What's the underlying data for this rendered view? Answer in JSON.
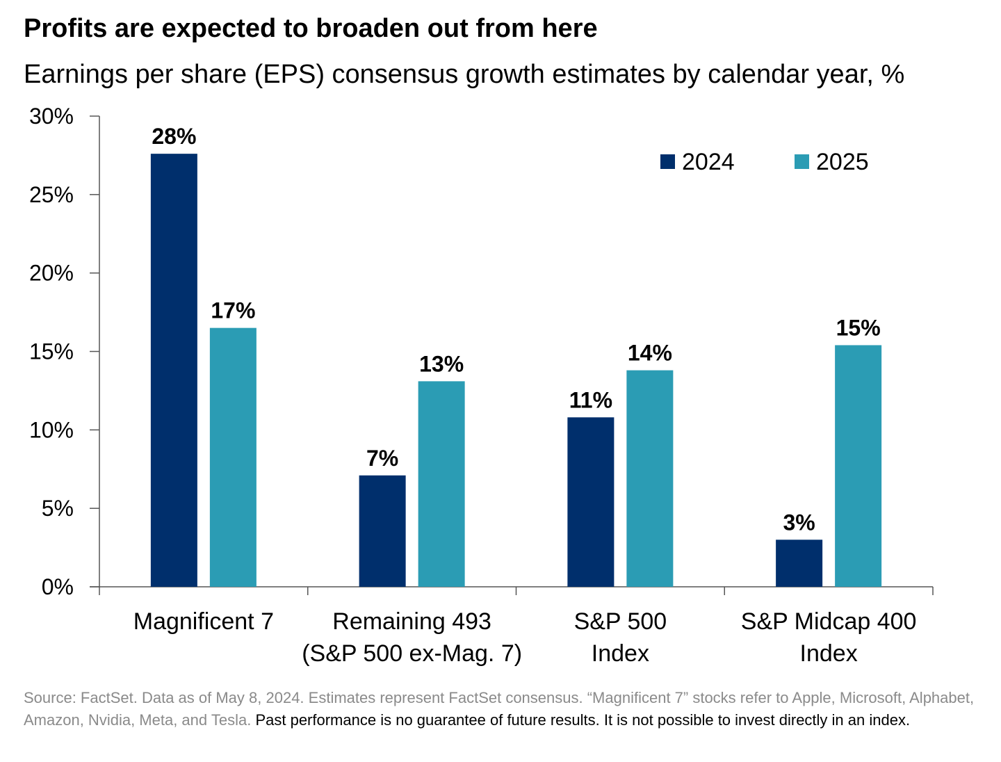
{
  "header": {
    "title": "Profits are expected to broaden out from here",
    "subtitle": "Earnings per share (EPS) consensus growth estimates by calendar year, %"
  },
  "chart_data": {
    "type": "bar",
    "title": "Profits are expected to broaden out from here",
    "subtitle": "Earnings per share (EPS) consensus growth estimates by calendar year, %",
    "xlabel": "",
    "ylabel": "",
    "ylim": [
      0,
      30
    ],
    "yticks": [
      0,
      5,
      10,
      15,
      20,
      25,
      30
    ],
    "ytick_labels": [
      "0%",
      "5%",
      "10%",
      "15%",
      "20%",
      "25%",
      "30%"
    ],
    "grid": false,
    "legend_position": "top-right",
    "categories": [
      [
        "Magnificent 7"
      ],
      [
        "Remaining 493",
        "(S&P 500 ex-Mag. 7)"
      ],
      [
        "S&P 500",
        "Index"
      ],
      [
        "S&P Midcap 400",
        "Index"
      ]
    ],
    "series": [
      {
        "name": "2024",
        "color": "#002f6c",
        "values": [
          27.6,
          7.1,
          10.8,
          3.0
        ],
        "labels": [
          "28%",
          "7%",
          "11%",
          "3%"
        ]
      },
      {
        "name": "2025",
        "color": "#2b9cb4",
        "values": [
          16.5,
          13.1,
          13.8,
          15.4
        ],
        "labels": [
          "17%",
          "13%",
          "14%",
          "15%"
        ]
      }
    ]
  },
  "footnote": {
    "source": "Source: FactSet. Data as of May 8, 2024. Estimates represent FactSet consensus. “Magnificent 7” stocks refer to Apple, Microsoft, Alphabet, Amazon, Nvidia, Meta, and Tesla.",
    "disclaimer": "Past performance is no guarantee of future results. It is not possible to invest directly in an index."
  }
}
